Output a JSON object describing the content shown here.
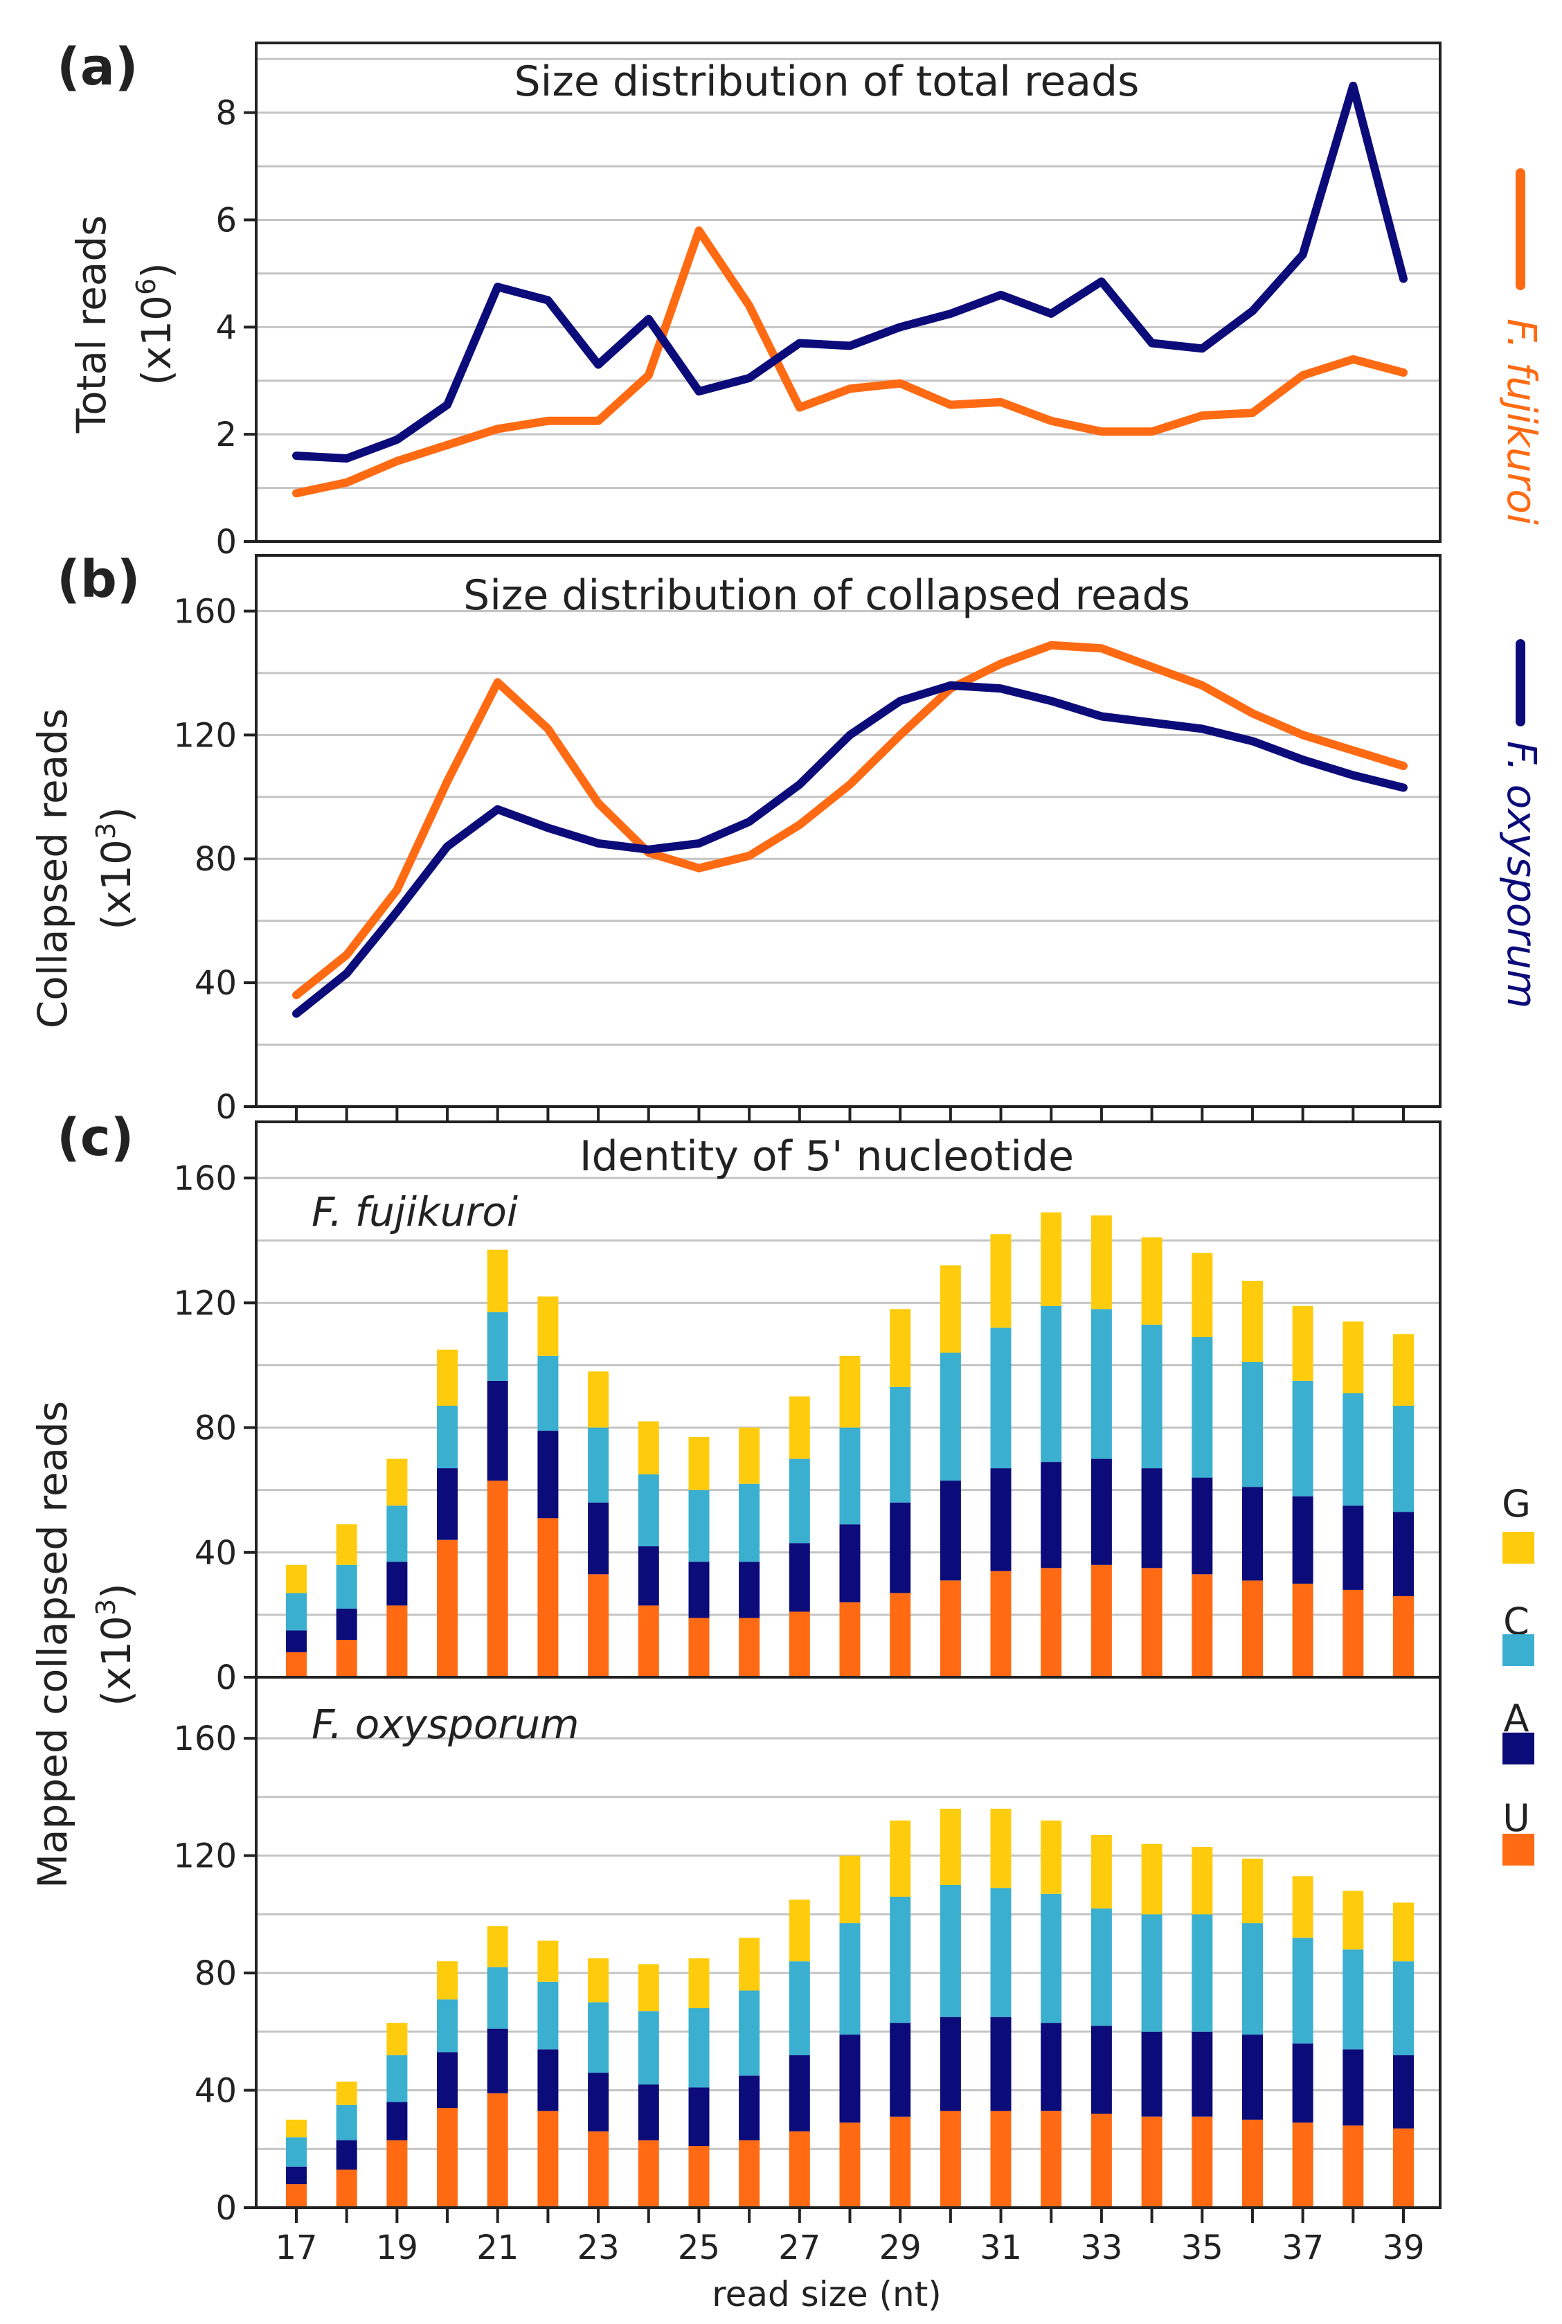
{
  "colors": {
    "fujikuroi": "#FF6A13",
    "oxysporum": "#0B0B7A",
    "G": "#FFCC0D",
    "C": "#3AAFCF",
    "A": "#0B0B7A",
    "U": "#FF6A13",
    "grid": "#c4c4c4",
    "frame": "#222222"
  },
  "legend": {
    "fujikuroi": "F. fujikuroi",
    "oxysporum": "F. oxysporum",
    "nucleotides": [
      "G",
      "C",
      "A",
      "U"
    ]
  },
  "xaxis": {
    "label": "read size (nt)"
  },
  "chart_data": [
    {
      "id": "a",
      "panel_label": "(a)",
      "type": "line",
      "title": "Size distribution of total reads",
      "ylabel_line1": "Total reads",
      "ylabel_line2": "(x10",
      "ylabel_sup": "6",
      "ylabel_close": ")",
      "ylim": [
        0,
        9.3
      ],
      "yticks": [
        0,
        2,
        4,
        6,
        8
      ],
      "grid_step": 1,
      "x": [
        17,
        18,
        19,
        20,
        21,
        22,
        23,
        24,
        25,
        26,
        27,
        28,
        29,
        30,
        31,
        32,
        33,
        34,
        35,
        36,
        37,
        38,
        39
      ],
      "series": [
        {
          "name": "F. fujikuroi",
          "color_key": "fujikuroi",
          "values": [
            0.9,
            1.1,
            1.5,
            1.8,
            2.1,
            2.25,
            2.25,
            3.1,
            5.8,
            4.4,
            2.5,
            2.85,
            2.95,
            2.55,
            2.6,
            2.25,
            2.05,
            2.05,
            2.35,
            2.4,
            3.1,
            3.4,
            3.15
          ]
        },
        {
          "name": "F. oxysporum",
          "color_key": "oxysporum",
          "values": [
            1.6,
            1.55,
            1.9,
            2.55,
            4.75,
            4.5,
            3.3,
            4.15,
            2.8,
            3.05,
            3.7,
            3.65,
            4.0,
            4.25,
            4.6,
            4.25,
            4.85,
            3.7,
            3.6,
            4.3,
            5.35,
            8.5,
            4.9
          ]
        }
      ]
    },
    {
      "id": "b",
      "panel_label": "(b)",
      "type": "line",
      "title": "Size distribution of collapsed reads",
      "ylabel_line1": "Collapsed reads",
      "ylabel_line2": "(x10",
      "ylabel_sup": "3",
      "ylabel_close": ")",
      "ylim": [
        0,
        178
      ],
      "yticks": [
        0,
        40,
        80,
        120,
        160
      ],
      "grid_step": 20,
      "x": [
        17,
        18,
        19,
        20,
        21,
        22,
        23,
        24,
        25,
        26,
        27,
        28,
        29,
        30,
        31,
        32,
        33,
        34,
        35,
        36,
        37,
        38,
        39
      ],
      "series": [
        {
          "name": "F. fujikuroi",
          "color_key": "fujikuroi",
          "values": [
            36,
            49,
            70,
            105,
            137,
            122,
            98,
            82,
            77,
            81,
            91,
            104,
            120,
            135,
            143,
            149,
            148,
            142,
            136,
            127,
            120,
            115,
            110
          ]
        },
        {
          "name": "F. oxysporum",
          "color_key": "oxysporum",
          "values": [
            30,
            43,
            63,
            84,
            96,
            90,
            85,
            83,
            85,
            92,
            104,
            120,
            131,
            136,
            135,
            131,
            126,
            124,
            122,
            118,
            112,
            107,
            103
          ]
        }
      ]
    },
    {
      "id": "c",
      "panel_label": "(c)",
      "type": "bar",
      "title": "Identity of 5' nucleotide",
      "ylabel_line1": "Mapped collapsed reads",
      "ylabel_line2": "(x10",
      "ylabel_sup": "3",
      "ylabel_close": ")",
      "ylim": [
        0,
        178
      ],
      "yticks": [
        0,
        40,
        80,
        120,
        160
      ],
      "grid_step": 20,
      "categories": [
        "17",
        "18",
        "19",
        "20",
        "21",
        "22",
        "23",
        "24",
        "25",
        "26",
        "27",
        "28",
        "29",
        "30",
        "31",
        "32",
        "33",
        "34",
        "35",
        "36",
        "37",
        "38",
        "39"
      ],
      "xtick_labels": [
        "17",
        "19",
        "21",
        "23",
        "25",
        "27",
        "29",
        "31",
        "33",
        "35",
        "37",
        "39"
      ],
      "stack_order": [
        "U",
        "A",
        "C",
        "G"
      ],
      "subplots": [
        {
          "species": "F. fujikuroi",
          "U": [
            8,
            12,
            23,
            44,
            63,
            51,
            33,
            23,
            19,
            19,
            21,
            24,
            27,
            31,
            34,
            35,
            36,
            35,
            33,
            31,
            30,
            28,
            26
          ],
          "A": [
            7,
            10,
            14,
            23,
            32,
            28,
            23,
            19,
            18,
            18,
            22,
            25,
            29,
            32,
            33,
            34,
            34,
            32,
            31,
            30,
            28,
            27,
            27
          ],
          "C": [
            12,
            14,
            18,
            20,
            22,
            24,
            24,
            23,
            23,
            25,
            27,
            31,
            37,
            41,
            45,
            50,
            48,
            46,
            45,
            40,
            37,
            36,
            34
          ],
          "G": [
            9,
            13,
            15,
            18,
            20,
            19,
            18,
            17,
            17,
            18,
            20,
            23,
            25,
            28,
            30,
            30,
            30,
            28,
            27,
            26,
            24,
            23,
            23
          ]
        },
        {
          "species": "F. oxysporum",
          "U": [
            8,
            13,
            23,
            34,
            39,
            33,
            26,
            23,
            21,
            23,
            26,
            29,
            31,
            33,
            33,
            33,
            32,
            31,
            31,
            30,
            29,
            28,
            27
          ],
          "A": [
            6,
            10,
            13,
            19,
            22,
            21,
            20,
            19,
            20,
            22,
            26,
            30,
            32,
            32,
            32,
            30,
            30,
            29,
            29,
            29,
            27,
            26,
            25
          ],
          "C": [
            10,
            12,
            16,
            18,
            21,
            23,
            24,
            25,
            27,
            29,
            32,
            38,
            43,
            45,
            44,
            44,
            40,
            40,
            40,
            38,
            36,
            34,
            32
          ],
          "G": [
            6,
            8,
            11,
            13,
            14,
            14,
            15,
            16,
            17,
            18,
            21,
            23,
            26,
            26,
            27,
            25,
            25,
            24,
            23,
            22,
            21,
            20,
            20
          ]
        }
      ]
    }
  ]
}
